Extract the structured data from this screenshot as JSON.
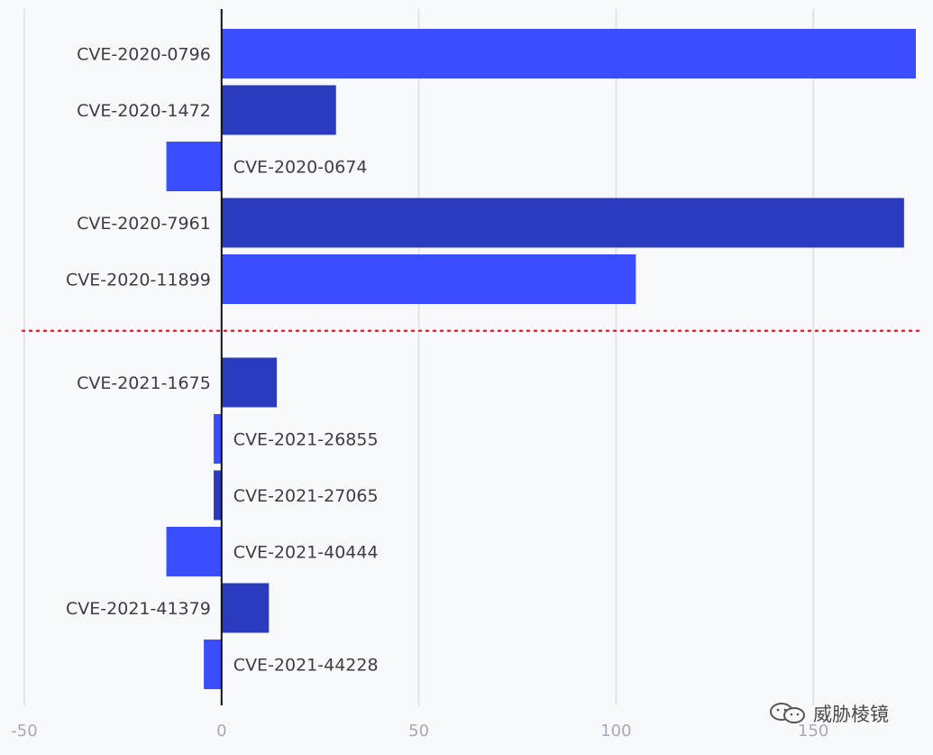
{
  "chart_data": {
    "type": "bar",
    "orientation": "horizontal",
    "title": "",
    "xlabel": "",
    "ylabel": "",
    "xlim": [
      -50,
      176
    ],
    "xticks": [
      -50,
      0,
      50,
      100,
      150
    ],
    "xtick_labels": [
      "-50",
      "0",
      "50",
      "100",
      "150"
    ],
    "grid": true,
    "group_separator": "dotted red line between 2020 and 2021 entries",
    "colors": {
      "bright": "#3a4dff",
      "dark": "#2b3bc0",
      "separator": "#e8233f",
      "grid": "#e3e4e8",
      "axis": "#111111"
    },
    "categories": [
      "CVE-2020-0796",
      "CVE-2020-1472",
      "CVE-2020-0674",
      "CVE-2020-7961",
      "CVE-2020-11899",
      "CVE-2021-1675",
      "CVE-2021-26855",
      "CVE-2021-27065",
      "CVE-2021-40444",
      "CVE-2021-41379",
      "CVE-2021-44228"
    ],
    "values": [
      176,
      29,
      -14,
      173,
      105,
      14,
      -2,
      -2,
      -14,
      12,
      -4.5
    ],
    "group_split_after": 4
  },
  "watermark": {
    "icon": "wechat-icon",
    "text": "威胁棱镜"
  }
}
